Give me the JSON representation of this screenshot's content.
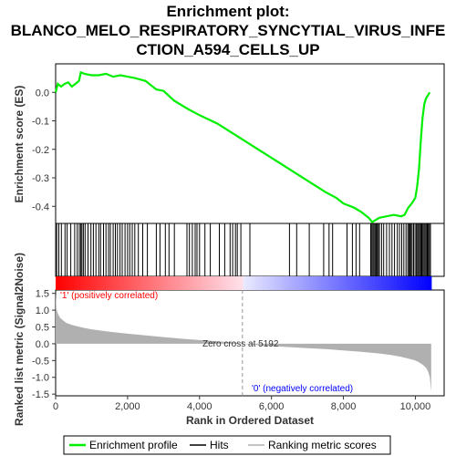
{
  "chart_data": {
    "type": "line",
    "title_lines": [
      "Enrichment plot:",
      "BLANCO_MELO_RESPIRATORY_SYNCYTIAL_VIRUS_INFE",
      "CTION_A594_CELLS_UP"
    ],
    "ylabel": "Enrichment score (ES)",
    "ylabel_bottom": "Ranked list metric (Signal2Noise)",
    "xlabel": "Rank in Ordered Dataset",
    "x_range": [
      0,
      10800
    ],
    "x_ticks": [
      0,
      2000,
      4000,
      6000,
      8000,
      10000
    ],
    "x_tick_labels": [
      "0",
      "2,000",
      "4,000",
      "6,000",
      "8,000",
      "10,000"
    ],
    "es_ylim": [
      -0.46,
      0.1
    ],
    "es_ticks": [
      0.0,
      -0.1,
      -0.2,
      -0.3,
      -0.4
    ],
    "es_tick_labels": [
      "0.0",
      "-0.1",
      "-0.2",
      "-0.3",
      "-0.4"
    ],
    "metric_ylim": [
      -1.55,
      1.6
    ],
    "metric_ticks": [
      1.5,
      1.0,
      0.5,
      0.0,
      -0.5,
      -1.0,
      -1.5
    ],
    "metric_tick_labels": [
      "1.5",
      "1.0",
      "0.5",
      "0.0",
      "-0.5",
      "-1.0",
      "-1.5"
    ],
    "series": [
      {
        "name": "Enrichment profile",
        "color": "#00ee00",
        "x": [
          0,
          60,
          150,
          250,
          350,
          450,
          550,
          650,
          700,
          800,
          1000,
          1200,
          1400,
          1600,
          1800,
          2000,
          2200,
          2500,
          2800,
          3000,
          3300,
          3700,
          4000,
          4500,
          5000,
          5500,
          6000,
          6500,
          7000,
          7500,
          7800,
          8000,
          8300,
          8500,
          8700,
          8800,
          9000,
          9200,
          9400,
          9600,
          9700,
          9800,
          9900,
          10000,
          10050,
          10100,
          10150,
          10200,
          10250,
          10300,
          10350,
          10400
        ],
        "y": [
          0.0,
          0.03,
          0.02,
          0.03,
          0.035,
          0.02,
          0.03,
          0.04,
          0.07,
          0.065,
          0.06,
          0.06,
          0.065,
          0.055,
          0.06,
          0.055,
          0.05,
          0.04,
          0.01,
          0.005,
          -0.03,
          -0.06,
          -0.08,
          -0.11,
          -0.15,
          -0.19,
          -0.23,
          -0.27,
          -0.31,
          -0.35,
          -0.37,
          -0.39,
          -0.405,
          -0.42,
          -0.44,
          -0.455,
          -0.44,
          -0.435,
          -0.43,
          -0.435,
          -0.43,
          -0.405,
          -0.39,
          -0.37,
          -0.33,
          -0.27,
          -0.17,
          -0.09,
          -0.04,
          -0.02,
          -0.01,
          0.0
        ]
      },
      {
        "name": "Hits",
        "color": "#000000",
        "x": [
          30,
          90,
          160,
          260,
          320,
          420,
          530,
          600,
          660,
          700,
          730,
          770,
          820,
          900,
          980,
          1050,
          1120,
          1200,
          1250,
          1330,
          1400,
          1470,
          1520,
          1600,
          1660,
          1720,
          1790,
          1850,
          1930,
          2000,
          2060,
          2130,
          2200,
          2300,
          2420,
          2550,
          2800,
          2900,
          3050,
          3150,
          3300,
          3650,
          3720,
          3800,
          3880,
          3930,
          4000,
          4150,
          4300,
          4550,
          4700,
          4850,
          4920,
          5000,
          5050,
          5150,
          5400,
          6500,
          6700,
          7050,
          7450,
          7600,
          7700,
          8100,
          8250,
          8350,
          8450,
          8760,
          8790,
          8820,
          8850,
          8880,
          8910,
          8940,
          8970,
          9000,
          9060,
          9120,
          9200,
          9280,
          9350,
          9420,
          9500,
          9560,
          9620,
          9680,
          9740,
          9790,
          9820,
          9850,
          9880,
          9910,
          9950,
          9990,
          10030,
          10060,
          10090,
          10120,
          10150,
          10180,
          10210,
          10240,
          10270,
          10300,
          10330,
          10360,
          10390,
          10420
        ]
      },
      {
        "name": "Ranking metric scores",
        "color": "#b0b0b0",
        "x": [
          0,
          20,
          60,
          120,
          200,
          300,
          450,
          600,
          800,
          1000,
          1500,
          2000,
          2500,
          3000,
          3500,
          4000,
          4500,
          5000,
          5192,
          5500,
          6000,
          6500,
          7000,
          7500,
          8000,
          8500,
          9000,
          9300,
          9600,
          9800,
          10000,
          10100,
          10200,
          10300,
          10350,
          10400,
          10420,
          10440
        ],
        "y": [
          1.55,
          1.05,
          0.9,
          0.78,
          0.7,
          0.62,
          0.56,
          0.52,
          0.47,
          0.43,
          0.36,
          0.3,
          0.25,
          0.2,
          0.15,
          0.11,
          0.07,
          0.03,
          0.0,
          -0.03,
          -0.07,
          -0.1,
          -0.13,
          -0.16,
          -0.2,
          -0.24,
          -0.29,
          -0.33,
          -0.39,
          -0.44,
          -0.5,
          -0.55,
          -0.62,
          -0.72,
          -0.82,
          -0.98,
          -1.2,
          -1.42
        ]
      }
    ],
    "zero_cross_rank": 5192,
    "zero_cross_text": "Zero cross at 5192",
    "pos_label": "'1' (positively correlated)",
    "neg_label": "'0' (negatively correlated)",
    "pos_color": "#ff0000",
    "neg_color": "#0000ff",
    "legend": [
      {
        "label": "Enrichment profile",
        "color": "#00ee00"
      },
      {
        "label": "Hits",
        "color": "#000000"
      },
      {
        "label": "Ranking metric scores",
        "color": "#b0b0b0"
      }
    ],
    "legend_position": "bottom"
  }
}
